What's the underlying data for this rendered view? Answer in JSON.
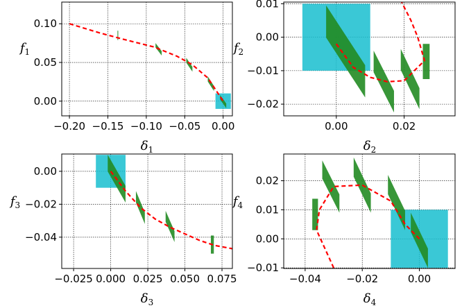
{
  "chart_data": [
    {
      "type": "scatter",
      "title": "",
      "xlabel": "δ",
      "xlabel_sub": "1",
      "ylabel": "f",
      "ylabel_sub": "1",
      "xlim": [
        -0.21,
        0.012
      ],
      "ylim": [
        -0.019,
        0.128
      ],
      "xticks": [
        -0.2,
        -0.15,
        -0.1,
        -0.05,
        0.0
      ],
      "xtick_labels": [
        "−0.20",
        "−0.15",
        "−0.10",
        "−0.05",
        "0.00"
      ],
      "yticks": [
        0.0,
        0.05,
        0.1
      ],
      "ytick_labels": [
        "0.00",
        "0.05",
        "0.10"
      ],
      "grid": true,
      "box": {
        "x": [
          -0.01,
          0.01
        ],
        "y": [
          -0.01,
          0.01
        ],
        "color": "#17becf"
      },
      "curve": {
        "color": "#ff0000",
        "style": "dashed",
        "x": [
          -0.2,
          -0.16,
          -0.13,
          -0.09,
          -0.06,
          -0.04,
          -0.02,
          -0.01,
          0.0
        ],
        "y": [
          0.1,
          0.088,
          0.08,
          0.07,
          0.058,
          0.047,
          0.03,
          0.015,
          0.0
        ]
      },
      "markers": {
        "color": "#228b22",
        "items": [
          {
            "x": [
              -0.1375,
              -0.1365
            ],
            "y": [
              0.079,
              0.091
            ],
            "skew": 0
          },
          {
            "x": [
              -0.088,
              -0.08
            ],
            "y": [
              0.059,
              0.075
            ],
            "skew": 0.6
          },
          {
            "x": [
              -0.048,
              -0.04
            ],
            "y": [
              0.038,
              0.056
            ],
            "skew": 0.6
          },
          {
            "x": [
              -0.02,
              -0.012
            ],
            "y": [
              0.013,
              0.032
            ],
            "skew": 0.6
          },
          {
            "x": [
              -0.004,
              0.004
            ],
            "y": [
              -0.009,
              0.008
            ],
            "skew": 0.6
          }
        ]
      }
    },
    {
      "type": "scatter",
      "title": "",
      "xlabel": "δ",
      "xlabel_sub": "2",
      "ylabel": "f",
      "ylabel_sub": "2",
      "xlim": [
        -0.0155,
        0.035
      ],
      "ylim": [
        -0.0235,
        0.0105
      ],
      "xticks": [
        0.0,
        0.02
      ],
      "xtick_labels": [
        "0.00",
        "0.02"
      ],
      "yticks": [
        0.01,
        0.0,
        -0.01,
        -0.02
      ],
      "ytick_labels": [
        "0.01",
        "0.00",
        "−0.01",
        "−0.02"
      ],
      "grid": true,
      "box": {
        "x": [
          -0.01,
          0.01
        ],
        "y": [
          -0.01,
          0.01
        ],
        "color": "#17becf"
      },
      "curve": {
        "color": "#ff0000",
        "style": "dashed",
        "x": [
          0.0,
          0.005,
          0.01,
          0.015,
          0.02,
          0.024,
          0.026,
          0.024,
          0.022,
          0.019
        ],
        "y": [
          -0.002,
          -0.009,
          -0.012,
          -0.0133,
          -0.013,
          -0.009,
          -0.007,
          0.0,
          0.005,
          0.011
        ]
      },
      "markers": {
        "color": "#228b22",
        "items": [
          {
            "x": [
              -0.003,
              0.0085
            ],
            "y": [
              -0.018,
              0.0095
            ],
            "skew": 0.6
          },
          {
            "x": [
              0.011,
              0.017
            ],
            "y": [
              -0.0225,
              -0.004
            ],
            "skew": 0.6
          },
          {
            "x": [
              0.019,
              0.0245
            ],
            "y": [
              -0.0215,
              -0.0035
            ],
            "skew": 0.6
          },
          {
            "x": [
              0.0255,
              0.0275
            ],
            "y": [
              -0.0125,
              -0.002
            ],
            "skew": 0
          }
        ]
      }
    },
    {
      "type": "scatter",
      "title": "",
      "xlabel": "δ",
      "xlabel_sub": "3",
      "ylabel": "f",
      "ylabel_sub": "3",
      "xlim": [
        -0.033,
        0.082
      ],
      "ylim": [
        -0.059,
        0.0105
      ],
      "xticks": [
        -0.025,
        0.0,
        0.025,
        0.05,
        0.075
      ],
      "xtick_labels": [
        "−0.025",
        "0.000",
        "0.025",
        "0.050",
        "0.075"
      ],
      "yticks": [
        0.0,
        -0.02,
        -0.04
      ],
      "ytick_labels": [
        "0.00",
        "−0.02",
        "−0.04"
      ],
      "grid": true,
      "box": {
        "x": [
          -0.01,
          0.01
        ],
        "y": [
          -0.01,
          0.01
        ],
        "color": "#17becf"
      },
      "curve": {
        "color": "#ff0000",
        "style": "dashed",
        "x": [
          0.0,
          0.01,
          0.02,
          0.03,
          0.04,
          0.05,
          0.06,
          0.07,
          0.082
        ],
        "y": [
          0.0,
          -0.012,
          -0.022,
          -0.029,
          -0.034,
          -0.038,
          -0.042,
          -0.045,
          -0.047
        ]
      },
      "markers": {
        "color": "#228b22",
        "items": [
          {
            "x": [
              -0.002,
              0.01
            ],
            "y": [
              -0.019,
              0.01
            ],
            "skew": 0.6
          },
          {
            "x": [
              0.017,
              0.023
            ],
            "y": [
              -0.032,
              -0.012
            ],
            "skew": 0.6
          },
          {
            "x": [
              0.037,
              0.043
            ],
            "y": [
              -0.043,
              -0.024
            ],
            "skew": 0.6
          },
          {
            "x": [
              0.0675,
              0.0695
            ],
            "y": [
              -0.05,
              -0.039
            ],
            "skew": 0
          }
        ]
      }
    },
    {
      "type": "scatter",
      "title": "",
      "xlabel": "δ",
      "xlabel_sub": "4",
      "ylabel": "f",
      "ylabel_sub": "4",
      "xlim": [
        -0.0475,
        0.0125
      ],
      "ylim": [
        -0.0102,
        0.0292
      ],
      "xticks": [
        -0.04,
        -0.02,
        0.0
      ],
      "xtick_labels": [
        "−0.04",
        "−0.02",
        "0.00"
      ],
      "yticks": [
        0.02,
        0.01,
        0.0,
        -0.01
      ],
      "ytick_labels": [
        "0.02",
        "0.01",
        "0.00",
        "−0.01"
      ],
      "grid": true,
      "box": {
        "x": [
          -0.01,
          0.01
        ],
        "y": [
          -0.01,
          0.01
        ],
        "color": "#17becf"
      },
      "curve": {
        "color": "#ff0000",
        "style": "dashed",
        "x": [
          -0.03,
          -0.036,
          -0.035,
          -0.03,
          -0.02,
          -0.01,
          -0.005,
          0.0
        ],
        "y": [
          -0.01,
          0.003,
          0.01,
          0.018,
          0.0185,
          0.013,
          0.005,
          0.0
        ]
      },
      "markers": {
        "color": "#228b22",
        "items": [
          {
            "x": [
              -0.0375,
              -0.0355
            ],
            "y": [
              0.003,
              0.0138
            ],
            "skew": 0
          },
          {
            "x": [
              -0.034,
              -0.028
            ],
            "y": [
              0.009,
              0.027
            ],
            "skew": 0.6
          },
          {
            "x": [
              -0.023,
              -0.017
            ],
            "y": [
              0.009,
              0.028
            ],
            "skew": 0.6
          },
          {
            "x": [
              -0.011,
              -0.005
            ],
            "y": [
              0.003,
              0.022
            ],
            "skew": 0.6
          },
          {
            "x": [
              -0.003,
              0.003
            ],
            "y": [
              -0.01,
              0.009
            ],
            "skew": 0.6
          }
        ]
      }
    }
  ]
}
